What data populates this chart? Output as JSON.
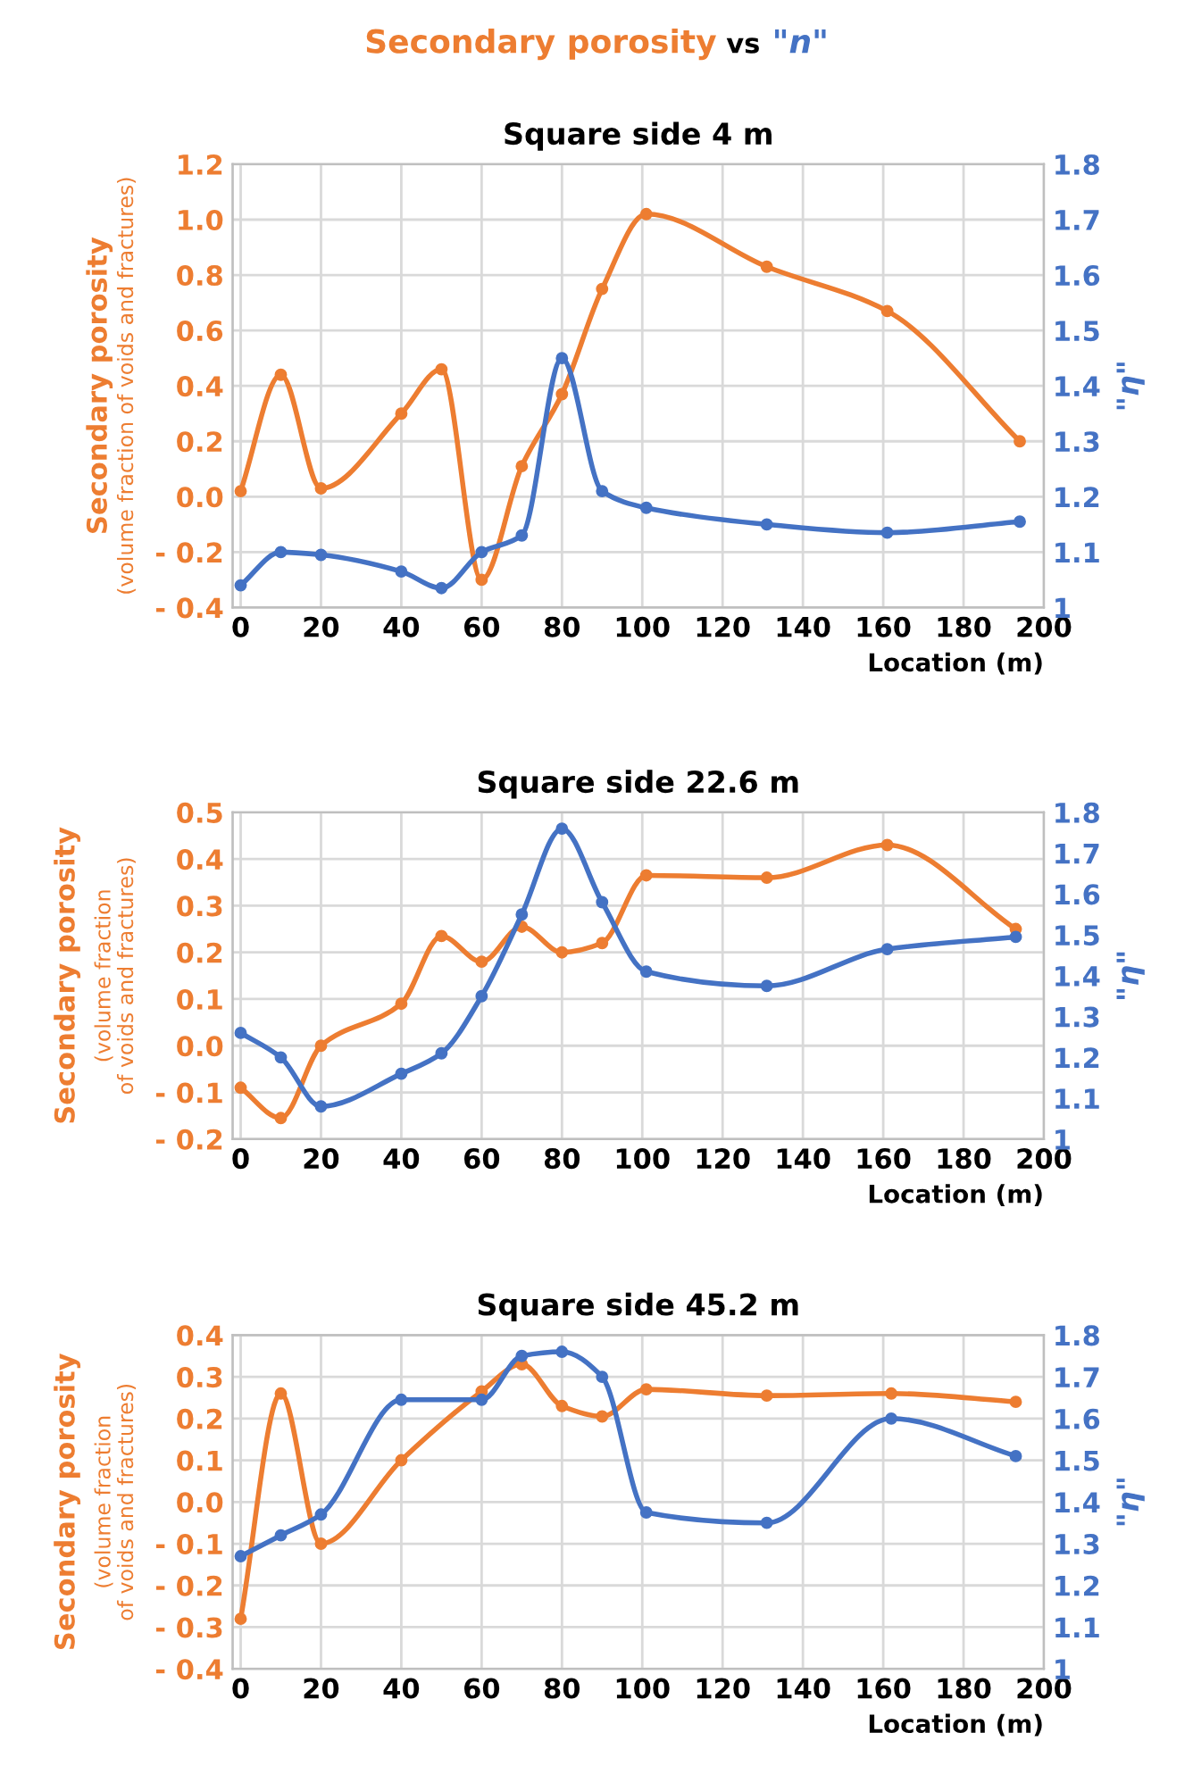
{
  "chart_data": [
    {
      "type": "line",
      "title": "Square side 4 m",
      "annotations": [
        "Secondary porosity",
        "vs",
        "\"n\""
      ],
      "xlabel": "Location (m)",
      "ylabel": "Secondary porosity\n(volume fraction of voids and fractures)",
      "y2label": "\"η\"",
      "xlim": [
        -2,
        200
      ],
      "xticks": [
        0,
        20,
        40,
        60,
        80,
        100,
        120,
        140,
        160,
        180,
        200
      ],
      "ylim": [
        -0.4,
        1.2
      ],
      "yticks": [
        {
          "value": -0.4,
          "label": "- 0.4"
        },
        {
          "value": -0.2,
          "label": "- 0.2"
        },
        {
          "value": 0,
          "label": "0.0"
        },
        0.2,
        0.4,
        0.6,
        0.8,
        {
          "value": 1,
          "label": "1.0"
        },
        1.2
      ],
      "y2lim": [
        1,
        1.8
      ],
      "y2ticks": [
        1,
        1.1,
        1.2,
        1.3,
        1.4,
        1.5,
        1.6,
        1.7,
        1.8
      ],
      "grid": true,
      "legend": false,
      "marker": "circle",
      "line_style": "solid",
      "series": [
        {
          "color": "#ed7d31",
          "x": [
            0,
            10,
            20,
            40,
            50,
            60,
            70,
            80,
            90,
            101,
            131,
            161,
            194
          ],
          "values": [
            0.02,
            0.44,
            0.03,
            0.3,
            0.46,
            -0.3,
            0.11,
            0.37,
            0.75,
            1.02,
            0.83,
            0.67,
            0.2
          ]
        },
        {
          "color": "#4472c4",
          "axis": "y2",
          "x": [
            0,
            10,
            20,
            40,
            50,
            60,
            70,
            80,
            90,
            101,
            131,
            161,
            194
          ],
          "values": [
            1.04,
            1.1,
            1.095,
            1.065,
            1.035,
            1.1,
            1.13,
            1.45,
            1.21,
            1.18,
            1.15,
            1.135,
            1.155
          ]
        }
      ]
    },
    {
      "type": "line",
      "title": "Square side 22.6 m",
      "xlabel": "Location (m)",
      "ylabel": "Secondary porosity\n(volume fraction\nof voids and fractures)",
      "y2label": "\"η\"",
      "xlim": [
        -2,
        200
      ],
      "xticks": [
        0,
        20,
        40,
        60,
        80,
        100,
        120,
        140,
        160,
        180,
        200
      ],
      "ylim": [
        -0.2,
        0.5
      ],
      "yticks": [
        {
          "value": -0.2,
          "label": "- 0.2"
        },
        {
          "value": -0.1,
          "label": "- 0.1"
        },
        {
          "value": 0,
          "label": "0.0"
        },
        0.1,
        0.2,
        0.3,
        0.4,
        0.5
      ],
      "y2lim": [
        1,
        1.8
      ],
      "y2ticks": [
        1,
        1.1,
        1.2,
        1.3,
        1.4,
        1.5,
        1.6,
        1.7,
        1.8
      ],
      "grid": true,
      "legend": false,
      "marker": "circle",
      "line_style": "solid",
      "series": [
        {
          "color": "#ed7d31",
          "x": [
            0,
            10,
            20,
            40,
            50,
            60,
            70,
            80,
            90,
            101,
            131,
            161,
            193
          ],
          "values": [
            -0.09,
            -0.155,
            0.0,
            0.09,
            0.235,
            0.18,
            0.255,
            0.2,
            0.22,
            0.365,
            0.36,
            0.43,
            0.25
          ]
        },
        {
          "color": "#4472c4",
          "axis": "y2",
          "x": [
            0,
            10,
            20,
            40,
            50,
            60,
            70,
            80,
            90,
            101,
            131,
            161,
            193
          ],
          "values": [
            1.26,
            1.2,
            1.08,
            1.16,
            1.21,
            1.35,
            1.55,
            1.76,
            1.58,
            1.41,
            1.375,
            1.465,
            1.495
          ]
        }
      ]
    },
    {
      "type": "line",
      "title": "Square side 45.2 m",
      "xlabel": "Location (m)",
      "ylabel": "Secondary porosity\n(volume fraction\nof voids and fractures)",
      "y2label": "\"η\"",
      "xlim": [
        -2,
        200
      ],
      "xticks": [
        0,
        20,
        40,
        60,
        80,
        100,
        120,
        140,
        160,
        180,
        200
      ],
      "ylim": [
        -0.4,
        0.4
      ],
      "yticks": [
        {
          "value": -0.4,
          "label": "- 0.4"
        },
        {
          "value": -0.3,
          "label": "- 0.3"
        },
        {
          "value": -0.2,
          "label": "- 0.2"
        },
        {
          "value": -0.1,
          "label": "- 0.1"
        },
        {
          "value": 0,
          "label": "0.0"
        },
        0.1,
        0.2,
        0.3,
        0.4
      ],
      "y2lim": [
        1,
        1.8
      ],
      "y2ticks": [
        1,
        1.1,
        1.2,
        1.3,
        1.4,
        1.5,
        1.6,
        1.7,
        1.8
      ],
      "grid": true,
      "legend": false,
      "marker": "circle",
      "line_style": "solid",
      "series": [
        {
          "color": "#ed7d31",
          "x": [
            0,
            10,
            20,
            40,
            60,
            70,
            80,
            90,
            101,
            131,
            162,
            193
          ],
          "values": [
            -0.28,
            0.26,
            -0.1,
            0.1,
            0.265,
            0.33,
            0.23,
            0.205,
            0.27,
            0.255,
            0.26,
            0.24
          ]
        },
        {
          "color": "#4472c4",
          "axis": "y2",
          "x": [
            0,
            10,
            20,
            40,
            60,
            70,
            80,
            90,
            101,
            131,
            162,
            193
          ],
          "values": [
            1.27,
            1.32,
            1.37,
            1.645,
            1.645,
            1.75,
            1.76,
            1.7,
            1.375,
            1.35,
            1.6,
            1.51
          ]
        }
      ]
    }
  ]
}
